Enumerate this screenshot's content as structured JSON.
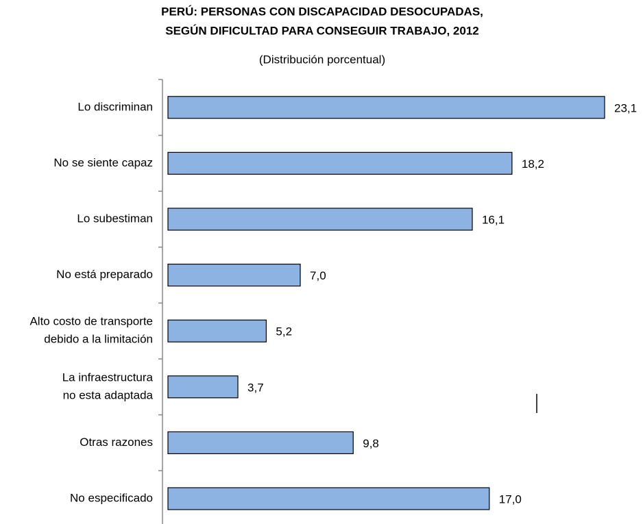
{
  "chart_data": {
    "type": "bar",
    "orientation": "horizontal",
    "title": [
      "PERÚ: PERSONAS CON DISCAPACIDAD DESOCUPADAS,",
      "SEGÚN DIFICULTAD PARA CONSEGUIR TRABAJO, 2012"
    ],
    "subtitle": "(Distribución porcentual)",
    "categories": [
      "Lo discriminan",
      "No se siente capaz",
      "Lo subestiman",
      "No está preparado",
      [
        "Alto costo de transporte",
        "debido a la limitación"
      ],
      [
        "La infraestructura",
        "no esta adaptada"
      ],
      "Otras razones",
      "No especificado"
    ],
    "values": [
      23.1,
      18.2,
      16.1,
      7.0,
      5.2,
      3.7,
      9.8,
      17.0
    ],
    "value_labels": [
      "23,1",
      "18,2",
      "16,1",
      "7,0",
      "5,2",
      "3,7",
      "9,8",
      "17,0"
    ],
    "color": "#8db3e2"
  }
}
